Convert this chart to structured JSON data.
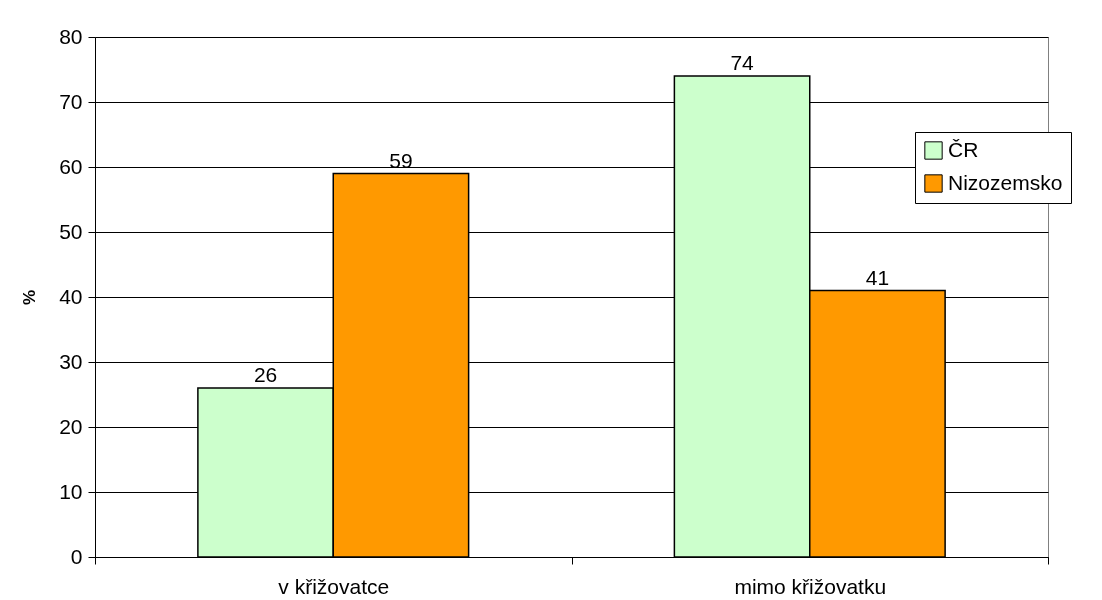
{
  "chart_data": {
    "type": "bar",
    "ylabel": "%",
    "categories": [
      "v křižovatce",
      "mimo křižovatku"
    ],
    "series": [
      {
        "name": "ČR",
        "color": "#ccffcc",
        "values": [
          26,
          74
        ]
      },
      {
        "name": "Nizozemsko",
        "color": "#ff9900",
        "values": [
          59,
          41
        ]
      }
    ],
    "ylim": [
      0,
      80
    ],
    "yticks": [
      0,
      10,
      20,
      30,
      40,
      50,
      60,
      70,
      80
    ],
    "grid": "y",
    "legend": "right",
    "data_labels": true
  }
}
